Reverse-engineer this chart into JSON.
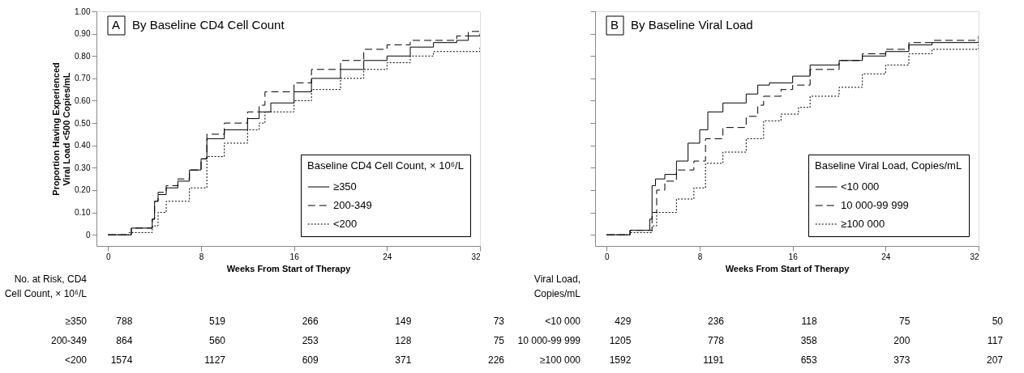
{
  "chart_data": [
    {
      "type": "step",
      "title": "By Baseline CD4 Cell Count",
      "xlabel": "Weeks From Start of Therapy",
      "ylabel": "Proportion Having Experienced\nViral Load <500 Copies/mL",
      "legend_title": "Baseline CD4 Cell Count, × 10⁶/L",
      "legend": "bottom right",
      "xlim": [
        -1,
        32
      ],
      "xticks": [
        0,
        8,
        16,
        24,
        32
      ],
      "ylim": [
        -0.05,
        1
      ],
      "yticks": [
        0,
        {
          "value": 0.1,
          "label": "0.10"
        },
        {
          "value": 0.2,
          "label": "0.20"
        },
        {
          "value": 0.3,
          "label": "0.30"
        },
        {
          "value": 0.4,
          "label": "0.40"
        },
        {
          "value": 0.5,
          "label": "0.50"
        },
        {
          "value": 0.6,
          "label": "0.60"
        },
        {
          "value": 0.7,
          "label": "0.70"
        },
        {
          "value": 0.8,
          "label": "0.80"
        },
        {
          "value": 0.9,
          "label": "0.90"
        },
        {
          "value": 1,
          "label": "1.00"
        }
      ],
      "series": [
        {
          "name": "≥350",
          "color": "#000000",
          "line_style": "solid",
          "x": [
            0,
            1.5,
            2,
            3.8,
            4.0,
            4.3,
            5,
            6,
            7,
            8,
            8.5,
            10,
            12,
            13,
            14,
            16,
            17.5,
            20,
            22,
            24,
            26,
            28,
            30,
            31,
            32
          ],
          "values": [
            0,
            0,
            0.03,
            0.07,
            0.15,
            0.18,
            0.21,
            0.24,
            0.29,
            0.34,
            0.43,
            0.47,
            0.52,
            0.55,
            0.59,
            0.64,
            0.7,
            0.74,
            0.78,
            0.8,
            0.84,
            0.86,
            0.87,
            0.89,
            0.9
          ]
        },
        {
          "name": "200-349",
          "color": "#000000",
          "line_style": "dashed",
          "x": [
            0,
            1.5,
            2,
            3.8,
            4.0,
            4.3,
            5,
            6,
            7,
            8,
            8.5,
            10,
            12,
            13,
            13.5,
            16,
            17.5,
            20,
            22,
            24,
            26,
            30,
            31,
            32
          ],
          "values": [
            0,
            0,
            0.03,
            0.07,
            0.15,
            0.19,
            0.22,
            0.25,
            0.29,
            0.34,
            0.45,
            0.5,
            0.55,
            0.58,
            0.64,
            0.68,
            0.74,
            0.78,
            0.83,
            0.85,
            0.87,
            0.89,
            0.91,
            0.91
          ]
        },
        {
          "name": "<200",
          "color": "#000000",
          "line_style": "dotted",
          "x": [
            0,
            1.8,
            3.8,
            4.3,
            5,
            7,
            8.5,
            10,
            12,
            13,
            13.5,
            16,
            17.5,
            20,
            22,
            24,
            26,
            28,
            32
          ],
          "values": [
            0,
            0.01,
            0.04,
            0.1,
            0.15,
            0.21,
            0.35,
            0.41,
            0.47,
            0.5,
            0.55,
            0.6,
            0.65,
            0.7,
            0.74,
            0.77,
            0.8,
            0.82,
            0.84
          ]
        }
      ],
      "annotations": [
        "A",
        "No. at Risk, CD4\nCell Count, × 10⁶/L",
        "≥350",
        "788",
        "519",
        "266",
        "149",
        "73",
        "200-349",
        "864",
        "560",
        "253",
        "128",
        "75",
        "<200",
        "1574",
        "1127",
        "609",
        "371",
        "226"
      ]
    },
    {
      "type": "step",
      "title": "By Baseline Viral Load",
      "xlabel": "Weeks From Start of Therapy",
      "legend_title": "Baseline Viral Load, Copies/mL",
      "legend": "bottom right",
      "tick_labels": "x",
      "xlim": [
        -1,
        32
      ],
      "xticks": [
        0,
        8,
        16,
        24,
        32
      ],
      "ylim": [
        -0.05,
        1
      ],
      "yticks": [
        0,
        0.1,
        0.2,
        0.3,
        0.4,
        0.5,
        0.6,
        0.7,
        0.8,
        0.9,
        1
      ],
      "series": [
        {
          "name": "<10 000",
          "color": "#000000",
          "line_style": "solid",
          "x": [
            0,
            1.8,
            2,
            3.7,
            3.9,
            4.2,
            5,
            6,
            7,
            8,
            8.7,
            10,
            12,
            13,
            14,
            16,
            17.5,
            20,
            22,
            24,
            26,
            28,
            32
          ],
          "values": [
            0,
            0,
            0.02,
            0.07,
            0.22,
            0.25,
            0.27,
            0.33,
            0.41,
            0.47,
            0.55,
            0.59,
            0.63,
            0.67,
            0.68,
            0.71,
            0.76,
            0.78,
            0.8,
            0.82,
            0.85,
            0.86,
            0.87
          ]
        },
        {
          "name": "10 000-99 999",
          "color": "#000000",
          "line_style": "dashed",
          "x": [
            0,
            1.8,
            2,
            3.9,
            4.3,
            5,
            6,
            7.5,
            8.5,
            10,
            12,
            13,
            13.5,
            15,
            16,
            17.5,
            20,
            22,
            24,
            26,
            28,
            32
          ],
          "values": [
            0,
            0,
            0.02,
            0.1,
            0.2,
            0.24,
            0.29,
            0.33,
            0.43,
            0.48,
            0.53,
            0.58,
            0.62,
            0.65,
            0.67,
            0.74,
            0.78,
            0.81,
            0.83,
            0.86,
            0.87,
            0.89
          ]
        },
        {
          "name": "≥100 000",
          "color": "#000000",
          "line_style": "dotted",
          "x": [
            0,
            1.8,
            2,
            3.9,
            4.3,
            6,
            7.5,
            8.5,
            10,
            12,
            13.5,
            15,
            16.5,
            17.5,
            20,
            22,
            24,
            26,
            28,
            32
          ],
          "values": [
            0,
            0,
            0.01,
            0.04,
            0.1,
            0.16,
            0.21,
            0.32,
            0.37,
            0.43,
            0.51,
            0.54,
            0.57,
            0.62,
            0.66,
            0.72,
            0.76,
            0.81,
            0.83,
            0.86
          ]
        }
      ],
      "annotations": [
        "B",
        "Viral Load,\nCopies/mL",
        "<10 000",
        "429",
        "236",
        "118",
        "75",
        "50",
        "10 000-99 999",
        "1205",
        "778",
        "358",
        "200",
        "117",
        "≥100 000",
        "1592",
        "1191",
        "653",
        "373",
        "207"
      ]
    }
  ]
}
